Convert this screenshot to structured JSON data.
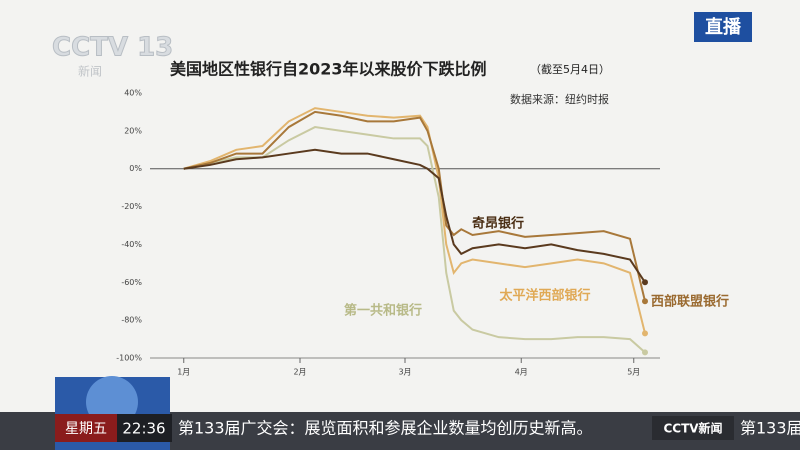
{
  "chart_data": {
    "type": "line",
    "title": "美国地区性银行自2023年以来股价下跌比例",
    "subtitle": "（截至5月4日）",
    "source": "数据来源：纽约时报",
    "x": [
      1,
      8,
      15,
      22,
      29,
      36,
      43,
      50,
      57,
      64,
      66,
      69,
      71,
      73,
      75,
      78,
      85,
      92,
      99,
      106,
      113,
      120,
      124
    ],
    "series": [
      {
        "name": "奇昂银行",
        "color": "#5a3a1e",
        "values": [
          0,
          2,
          5,
          6,
          8,
          10,
          8,
          8,
          5,
          2,
          0,
          -5,
          -25,
          -40,
          -45,
          -42,
          -40,
          -42,
          -40,
          -43,
          -45,
          -48,
          -60
        ]
      },
      {
        "name": "西部联盟银行",
        "color": "#a8783a",
        "values": [
          0,
          3,
          8,
          8,
          22,
          30,
          28,
          25,
          25,
          27,
          20,
          0,
          -30,
          -35,
          -32,
          -35,
          -33,
          -36,
          -35,
          -34,
          -33,
          -37,
          -70
        ]
      },
      {
        "name": "太平洋西部银行",
        "color": "#e2b56e",
        "values": [
          0,
          4,
          10,
          12,
          25,
          32,
          30,
          28,
          27,
          28,
          22,
          -5,
          -40,
          -55,
          -50,
          -48,
          -50,
          -52,
          -50,
          -48,
          -50,
          -55,
          -87
        ]
      },
      {
        "name": "第一共和银行",
        "color": "#c9caa2",
        "values": [
          0,
          3,
          6,
          6,
          15,
          22,
          20,
          18,
          16,
          16,
          12,
          -15,
          -55,
          -75,
          -80,
          -85,
          -89,
          -90,
          -90,
          -89,
          -89,
          -90,
          -97
        ]
      }
    ],
    "xlim": [
      -8,
      128
    ],
    "xticks": [
      {
        "value": 1,
        "label": "1月"
      },
      {
        "value": 32,
        "label": "2月"
      },
      {
        "value": 60,
        "label": "3月"
      },
      {
        "value": 91,
        "label": "4月"
      },
      {
        "value": 121,
        "label": "5月"
      }
    ],
    "ylim": [
      -100,
      40
    ],
    "yticks": [
      {
        "value": 40,
        "label": "40%"
      },
      {
        "value": 20,
        "label": "20%"
      },
      {
        "value": 0,
        "label": "0%"
      },
      {
        "value": -20,
        "label": "-20%"
      },
      {
        "value": -40,
        "label": "-40%"
      },
      {
        "value": -60,
        "label": "-60%"
      },
      {
        "value": -80,
        "label": "-80%"
      },
      {
        "value": -100,
        "label": "-100%"
      }
    ]
  },
  "broadcast": {
    "channel": "CCTV 13",
    "channel_sub": "新闻",
    "live": "直播",
    "weekday": "星期五",
    "time": "22:36",
    "ticker": "第133届广交会：展览面积和参展企业数量均创历史新高。",
    "ticker_logo": "CCTV新闻",
    "ticker_next": "第133届"
  }
}
